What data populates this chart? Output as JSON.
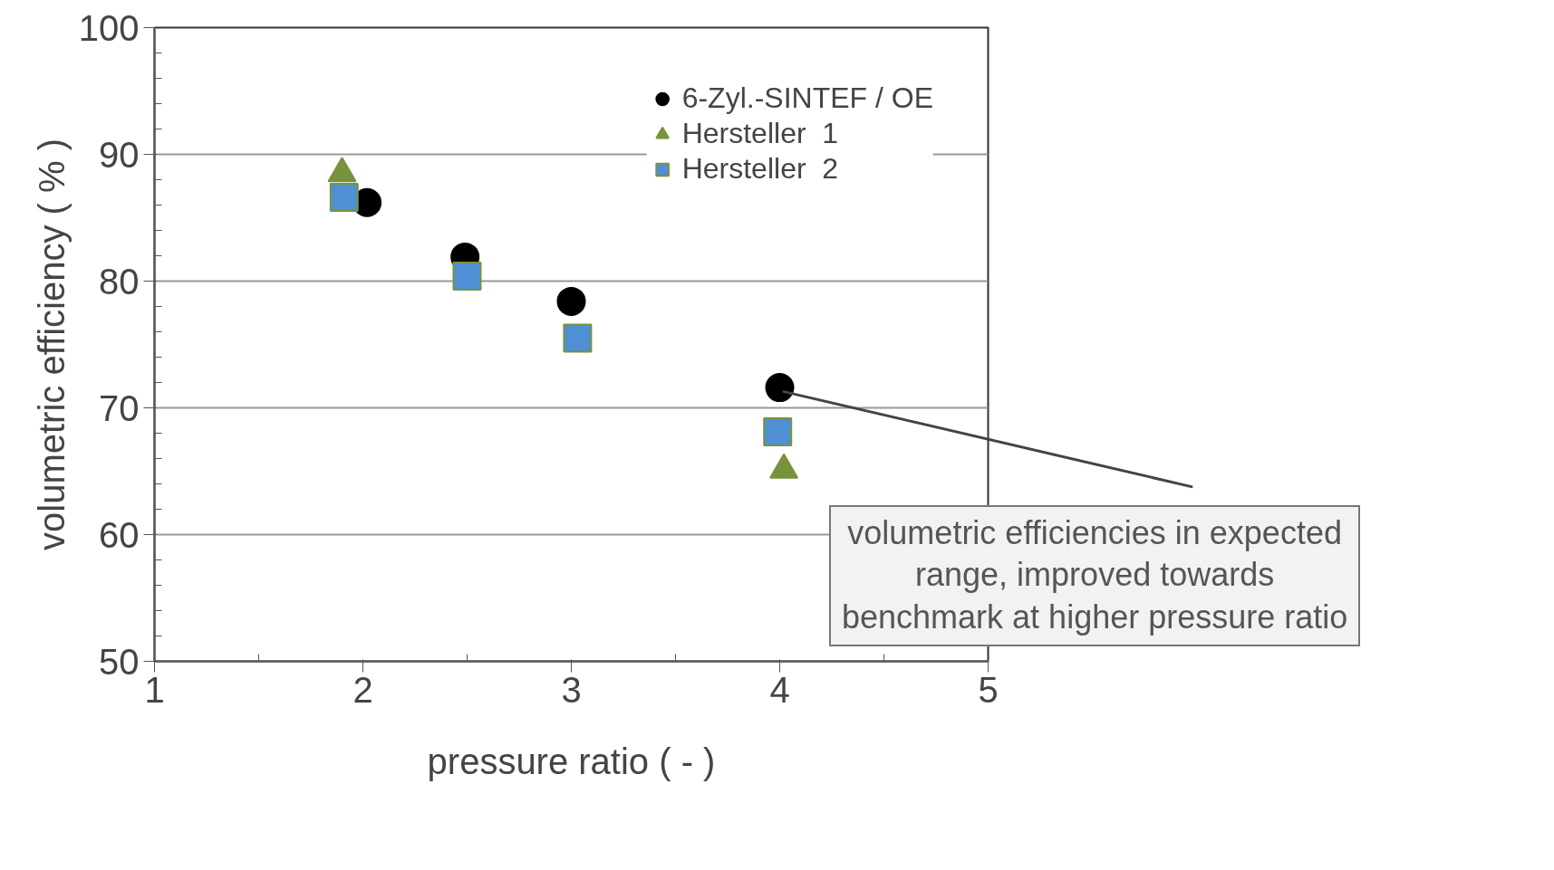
{
  "chart_data": {
    "type": "scatter",
    "xlabel": "pressure ratio ( - )",
    "ylabel": "volumetric efficiency ( % )",
    "xlim": [
      1,
      5
    ],
    "ylim": [
      50,
      100
    ],
    "xticks": [
      1,
      2,
      3,
      4,
      5
    ],
    "yticks": [
      50,
      60,
      70,
      80,
      90,
      100
    ],
    "grid": "y",
    "legend": "top right",
    "series": [
      {
        "name": "6-Zyl.-SINTEF / OE",
        "color": "#000000",
        "marker": "circle",
        "x": [
          2.02,
          2.49,
          3.0,
          4.0
        ],
        "values": [
          86.2,
          81.9,
          78.4,
          71.6
        ]
      },
      {
        "name": "Hersteller  1",
        "color": "#77933c",
        "marker": "triangle",
        "x": [
          1.9,
          2.5,
          3.02,
          4.02
        ],
        "values": [
          88.5,
          null,
          null,
          65.1
        ]
      },
      {
        "name": "Hersteller  2",
        "color": "#4f8fd6",
        "marker": "square",
        "x": [
          1.91,
          2.5,
          3.03,
          3.99
        ],
        "values": [
          86.6,
          80.4,
          75.5,
          68.1
        ]
      }
    ],
    "annotations": [
      {
        "text": "volumetric efficiencies in expected\nrange, improved towards\nbenchmark at higher pressure ratio",
        "x": 4.0,
        "y": 71.6
      }
    ]
  }
}
